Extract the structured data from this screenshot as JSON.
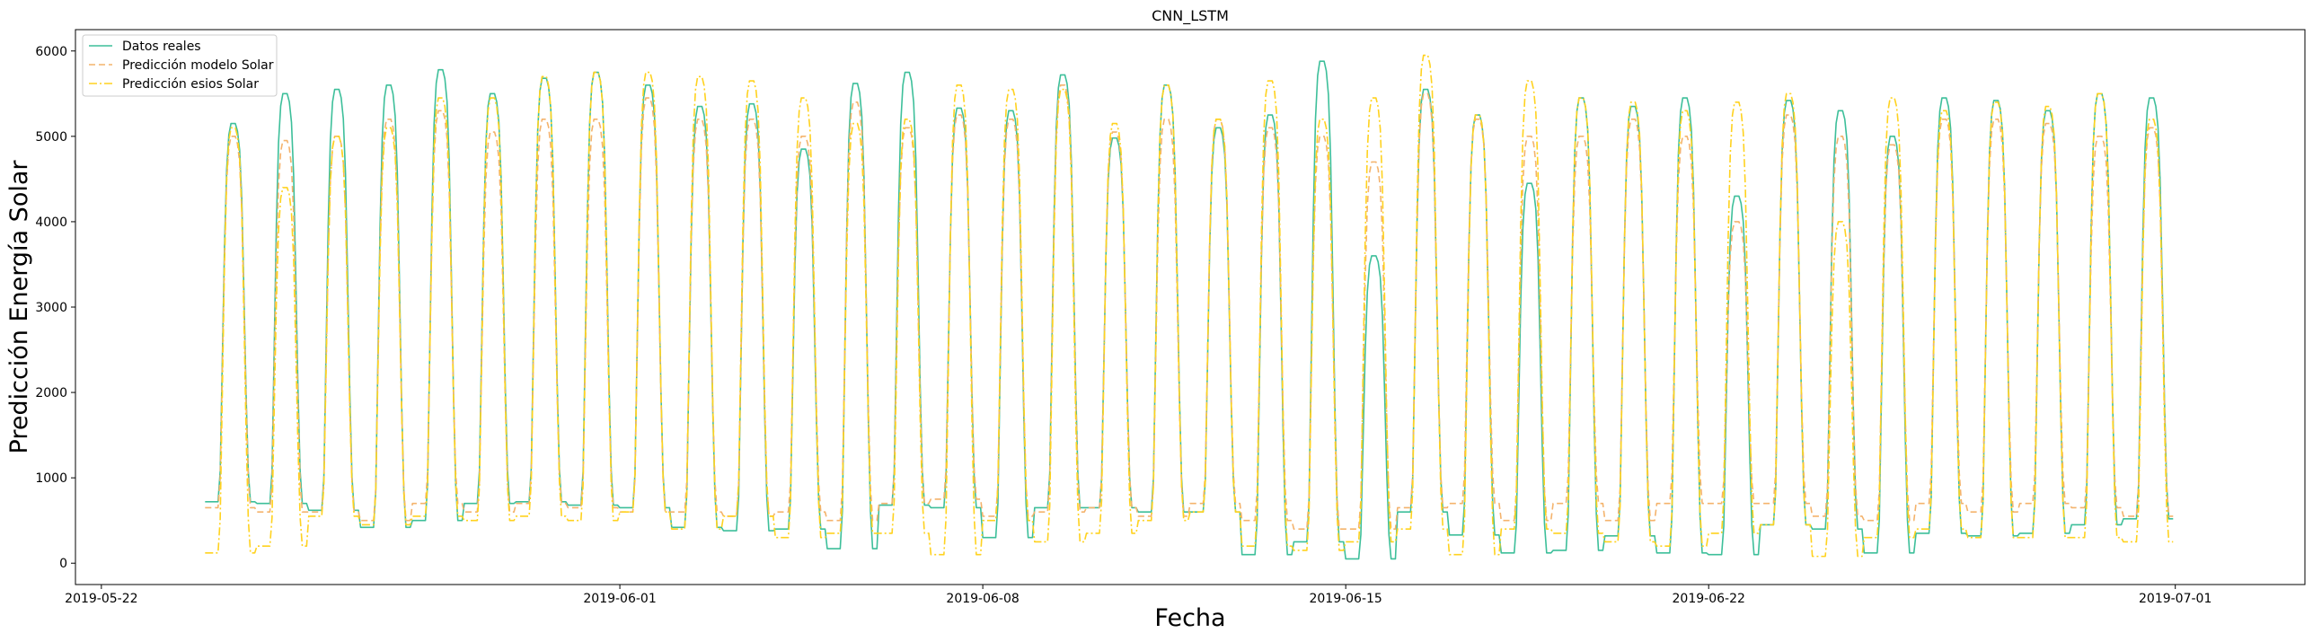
{
  "chart_data": {
    "type": "line",
    "title": "CNN_LSTM",
    "xlabel": "Fecha",
    "ylabel": "Predicción Energía Solar",
    "xlim": [
      "2019-05-21T12:00",
      "2019-07-03T12:00"
    ],
    "ylim": [
      -250,
      6250
    ],
    "x_ticks": [
      "2019-05-22",
      "2019-06-01",
      "2019-06-08",
      "2019-06-15",
      "2019-06-22",
      "2019-07-01"
    ],
    "y_ticks": [
      0,
      1000,
      2000,
      3000,
      4000,
      5000,
      6000
    ],
    "legend_position": "top-left",
    "grid": false,
    "x_start": "2019-05-24T00:00",
    "x_end": "2019-06-30T23:00",
    "day_shape": {
      "night_hours": [
        0,
        1,
        2,
        3,
        4,
        5,
        6,
        21,
        22,
        23
      ],
      "rise_hours": [
        7,
        8,
        9,
        10,
        11,
        12
      ],
      "plateau_hours": [
        13,
        14
      ],
      "fall_hours": [
        15,
        16,
        17,
        18,
        19,
        20
      ]
    },
    "series": [
      {
        "name": "Datos reales",
        "color": "#3dbf9a",
        "dash": "solid",
        "daily_peak": [
          5150,
          5500,
          5550,
          5600,
          5780,
          5500,
          5680,
          5750,
          5600,
          5350,
          5380,
          4850,
          5620,
          5750,
          5330,
          5300,
          5720,
          4980,
          5600,
          5100,
          5250,
          5880,
          3600,
          5550,
          5250,
          4450,
          5450,
          5350,
          5450,
          4300,
          5420,
          5300,
          5000,
          5450,
          5420,
          5300,
          5500,
          5450
        ],
        "daily_low": [
          720,
          700,
          620,
          420,
          500,
          700,
          720,
          680,
          650,
          420,
          380,
          400,
          170,
          680,
          650,
          300,
          650,
          650,
          600,
          600,
          100,
          250,
          50,
          600,
          330,
          120,
          150,
          320,
          120,
          100,
          450,
          400,
          120,
          350,
          320,
          350,
          450,
          520
        ]
      },
      {
        "name": "Predicción modelo Solar",
        "color": "#f4b36c",
        "dash": "dashed",
        "daily_peak": [
          5000,
          4950,
          5000,
          5200,
          5300,
          5050,
          5200,
          5200,
          5450,
          5200,
          5200,
          5000,
          5400,
          5100,
          5250,
          5200,
          5600,
          5050,
          5200,
          5200,
          5100,
          5000,
          4700,
          5500,
          5200,
          5000,
          5000,
          5200,
          5000,
          4000,
          5250,
          5000,
          4900,
          5200,
          5200,
          5150,
          5000,
          5100
        ],
        "daily_low": [
          650,
          600,
          600,
          500,
          700,
          600,
          700,
          650,
          600,
          600,
          550,
          600,
          500,
          700,
          750,
          550,
          600,
          650,
          550,
          700,
          500,
          400,
          400,
          650,
          700,
          500,
          700,
          500,
          700,
          700,
          700,
          550,
          500,
          700,
          600,
          700,
          650,
          550
        ]
      },
      {
        "name": "Predicción esios Solar",
        "color": "#ffd21f",
        "dash": "dashdot",
        "daily_peak": [
          5100,
          4400,
          5000,
          5100,
          5450,
          5450,
          5700,
          5750,
          5750,
          5700,
          5650,
          5450,
          5150,
          5200,
          5600,
          5550,
          5550,
          5150,
          5600,
          5200,
          5650,
          5200,
          5450,
          5950,
          5250,
          5650,
          5450,
          5400,
          5300,
          5400,
          5500,
          4000,
          5450,
          5300,
          5400,
          5350,
          5500,
          5200
        ],
        "daily_low": [
          120,
          200,
          550,
          450,
          550,
          500,
          550,
          500,
          600,
          400,
          550,
          300,
          350,
          350,
          100,
          500,
          250,
          350,
          500,
          600,
          200,
          150,
          250,
          400,
          100,
          400,
          350,
          250,
          200,
          350,
          450,
          80,
          300,
          400,
          300,
          300,
          300,
          250
        ]
      }
    ]
  }
}
